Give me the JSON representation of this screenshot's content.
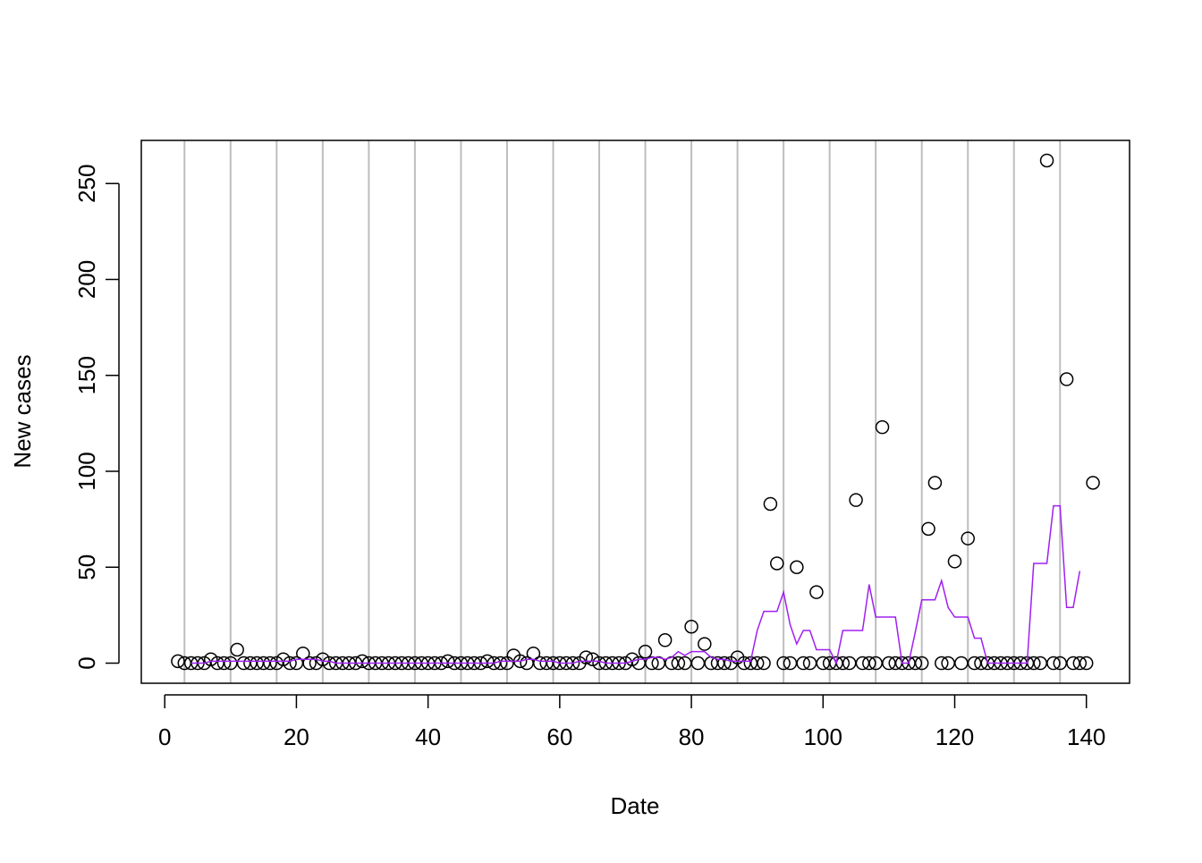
{
  "chart_data": {
    "type": "scatter",
    "xlabel": "Date",
    "ylabel": "New cases",
    "xlim": [
      -3.56,
      146.56
    ],
    "ylim": [
      -10.48,
      272.48
    ],
    "xticks": [
      0,
      20,
      40,
      60,
      80,
      100,
      120,
      140
    ],
    "yticks": [
      0,
      50,
      100,
      150,
      200,
      250
    ],
    "xgrid": [
      3,
      10,
      17,
      24,
      31,
      38,
      45,
      52,
      59,
      66,
      73,
      80,
      87,
      94,
      101,
      108,
      115,
      122,
      129,
      136
    ],
    "grid_color": "#bebebe",
    "series": [
      {
        "type": "scatter",
        "color": "#000000",
        "x": [
          2,
          3,
          4,
          5,
          6,
          7,
          8,
          9,
          10,
          11,
          12,
          13,
          14,
          15,
          16,
          17,
          18,
          19,
          20,
          21,
          22,
          23,
          24,
          25,
          26,
          27,
          28,
          29,
          30,
          31,
          32,
          33,
          34,
          35,
          36,
          37,
          38,
          39,
          40,
          41,
          42,
          43,
          44,
          45,
          46,
          47,
          48,
          49,
          50,
          51,
          52,
          53,
          54,
          55,
          56,
          57,
          58,
          59,
          60,
          61,
          62,
          63,
          64,
          65,
          66,
          67,
          68,
          69,
          70,
          71,
          72,
          73,
          74,
          75,
          76,
          77,
          78,
          79,
          80,
          81,
          82,
          83,
          84,
          85,
          86,
          87,
          88,
          89,
          90,
          91,
          92,
          93,
          94,
          95,
          96,
          97,
          98,
          99,
          100,
          101,
          102,
          103,
          104,
          105,
          106,
          107,
          108,
          109,
          110,
          111,
          112,
          113,
          114,
          115,
          116,
          117,
          118,
          119,
          120,
          121,
          122,
          123,
          124,
          125,
          126,
          127,
          128,
          129,
          130,
          131,
          132,
          133,
          134,
          135,
          136,
          137,
          138,
          139,
          140,
          141
        ],
        "values": [
          1,
          0,
          0,
          0,
          0,
          2,
          0,
          0,
          0,
          7,
          0,
          0,
          0,
          0,
          0,
          0,
          2,
          0,
          0,
          5,
          0,
          0,
          2,
          0,
          0,
          0,
          0,
          0,
          1,
          0,
          0,
          0,
          0,
          0,
          0,
          0,
          0,
          0,
          0,
          0,
          0,
          1,
          0,
          0,
          0,
          0,
          0,
          1,
          0,
          0,
          0,
          4,
          1,
          0,
          5,
          0,
          0,
          0,
          0,
          0,
          0,
          0,
          3,
          2,
          0,
          0,
          0,
          0,
          0,
          2,
          0,
          6,
          0,
          0,
          12,
          0,
          0,
          0,
          19,
          0,
          10,
          0,
          0,
          0,
          0,
          3,
          0,
          0,
          0,
          0,
          83,
          52,
          0,
          0,
          50,
          0,
          0,
          37,
          0,
          0,
          0,
          0,
          0,
          85,
          0,
          0,
          0,
          123,
          0,
          0,
          0,
          0,
          0,
          0,
          70,
          94,
          0,
          0,
          53,
          0,
          65,
          0,
          0,
          0,
          0,
          0,
          0,
          0,
          0,
          0,
          0,
          0,
          262,
          0,
          0,
          148,
          0,
          0,
          0,
          94
        ]
      },
      {
        "type": "line",
        "color": "#a020f0",
        "x": [
          4,
          5,
          6,
          7,
          8,
          9,
          10,
          11,
          12,
          13,
          14,
          15,
          16,
          17,
          18,
          19,
          20,
          21,
          22,
          23,
          24,
          25,
          26,
          27,
          28,
          29,
          30,
          31,
          32,
          33,
          34,
          35,
          36,
          37,
          38,
          39,
          40,
          41,
          42,
          43,
          44,
          45,
          46,
          47,
          48,
          49,
          50,
          51,
          52,
          53,
          54,
          55,
          56,
          57,
          58,
          59,
          60,
          61,
          62,
          63,
          64,
          65,
          66,
          67,
          68,
          69,
          70,
          71,
          72,
          73,
          74,
          75,
          76,
          77,
          78,
          79,
          80,
          81,
          82,
          83,
          84,
          85,
          86,
          87,
          88,
          89,
          90,
          91,
          92,
          93,
          94,
          95,
          96,
          97,
          98,
          99,
          100,
          101,
          102,
          103,
          104,
          105,
          106,
          107,
          108,
          109,
          110,
          111,
          112,
          113,
          114,
          115,
          116,
          117,
          118,
          119,
          120,
          121,
          122,
          123,
          124,
          125,
          126,
          127,
          128,
          129,
          130,
          131,
          132,
          133,
          134,
          135,
          136,
          137,
          138,
          139
        ],
        "values": [
          0,
          0,
          0,
          1,
          1,
          1,
          1,
          1,
          1,
          1,
          1,
          1,
          1,
          1,
          1,
          1,
          2,
          2,
          2,
          2,
          1,
          1,
          0,
          0,
          0,
          0,
          0,
          0,
          0,
          0,
          0,
          0,
          0,
          0,
          0,
          0,
          0,
          0,
          0,
          0,
          0,
          0,
          0,
          0,
          0,
          0,
          0,
          1,
          1,
          1,
          1,
          2,
          2,
          1,
          1,
          1,
          0,
          0,
          0,
          1,
          1,
          1,
          1,
          0,
          0,
          0,
          0,
          1,
          2,
          2,
          3,
          3,
          2,
          3,
          6,
          4,
          6,
          6,
          6,
          3,
          2,
          2,
          1,
          1,
          1,
          1,
          17,
          27,
          27,
          27,
          37,
          20,
          10,
          17,
          17,
          7,
          7,
          7,
          0,
          17,
          17,
          17,
          17,
          41,
          24,
          24,
          24,
          24,
          0,
          0,
          16,
          33,
          33,
          33,
          43,
          29,
          24,
          24,
          24,
          13,
          13,
          0,
          0,
          0,
          0,
          0,
          0,
          0,
          52,
          52,
          52,
          82,
          82,
          29,
          29,
          48
        ]
      }
    ]
  }
}
